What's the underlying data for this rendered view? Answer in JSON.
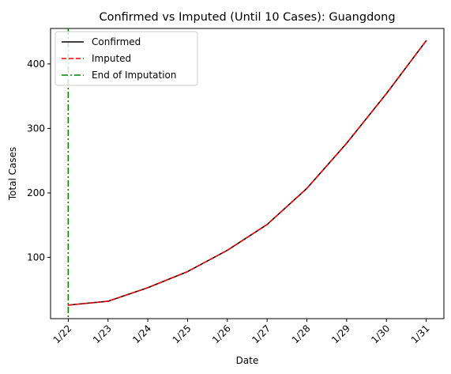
{
  "chart_data": {
    "type": "line",
    "title": "Confirmed vs Imputed (Until 10 Cases): Guangdong",
    "xlabel": "Date",
    "ylabel": "Total Cases",
    "categories": [
      "1/22",
      "1/23",
      "1/24",
      "1/25",
      "1/26",
      "1/27",
      "1/28",
      "1/29",
      "1/30",
      "1/31"
    ],
    "ylim": [
      5,
      455
    ],
    "yticks": [
      100,
      200,
      300,
      400
    ],
    "grid": false,
    "legend_position": "top-left",
    "series": [
      {
        "name": "Confirmed",
        "values": [
          26,
          32,
          53,
          78,
          111,
          151,
          207,
          277,
          354,
          436
        ],
        "color": "#000000",
        "style": "solid"
      },
      {
        "name": "Imputed",
        "values": [
          26,
          32,
          53,
          78,
          111,
          151,
          207,
          277,
          354,
          436
        ],
        "color": "#ff0000",
        "style": "dashed"
      }
    ],
    "vline": {
      "name": "End of Imputation",
      "x_category": "1/22",
      "color": "#008000",
      "style": "dashdot"
    }
  }
}
